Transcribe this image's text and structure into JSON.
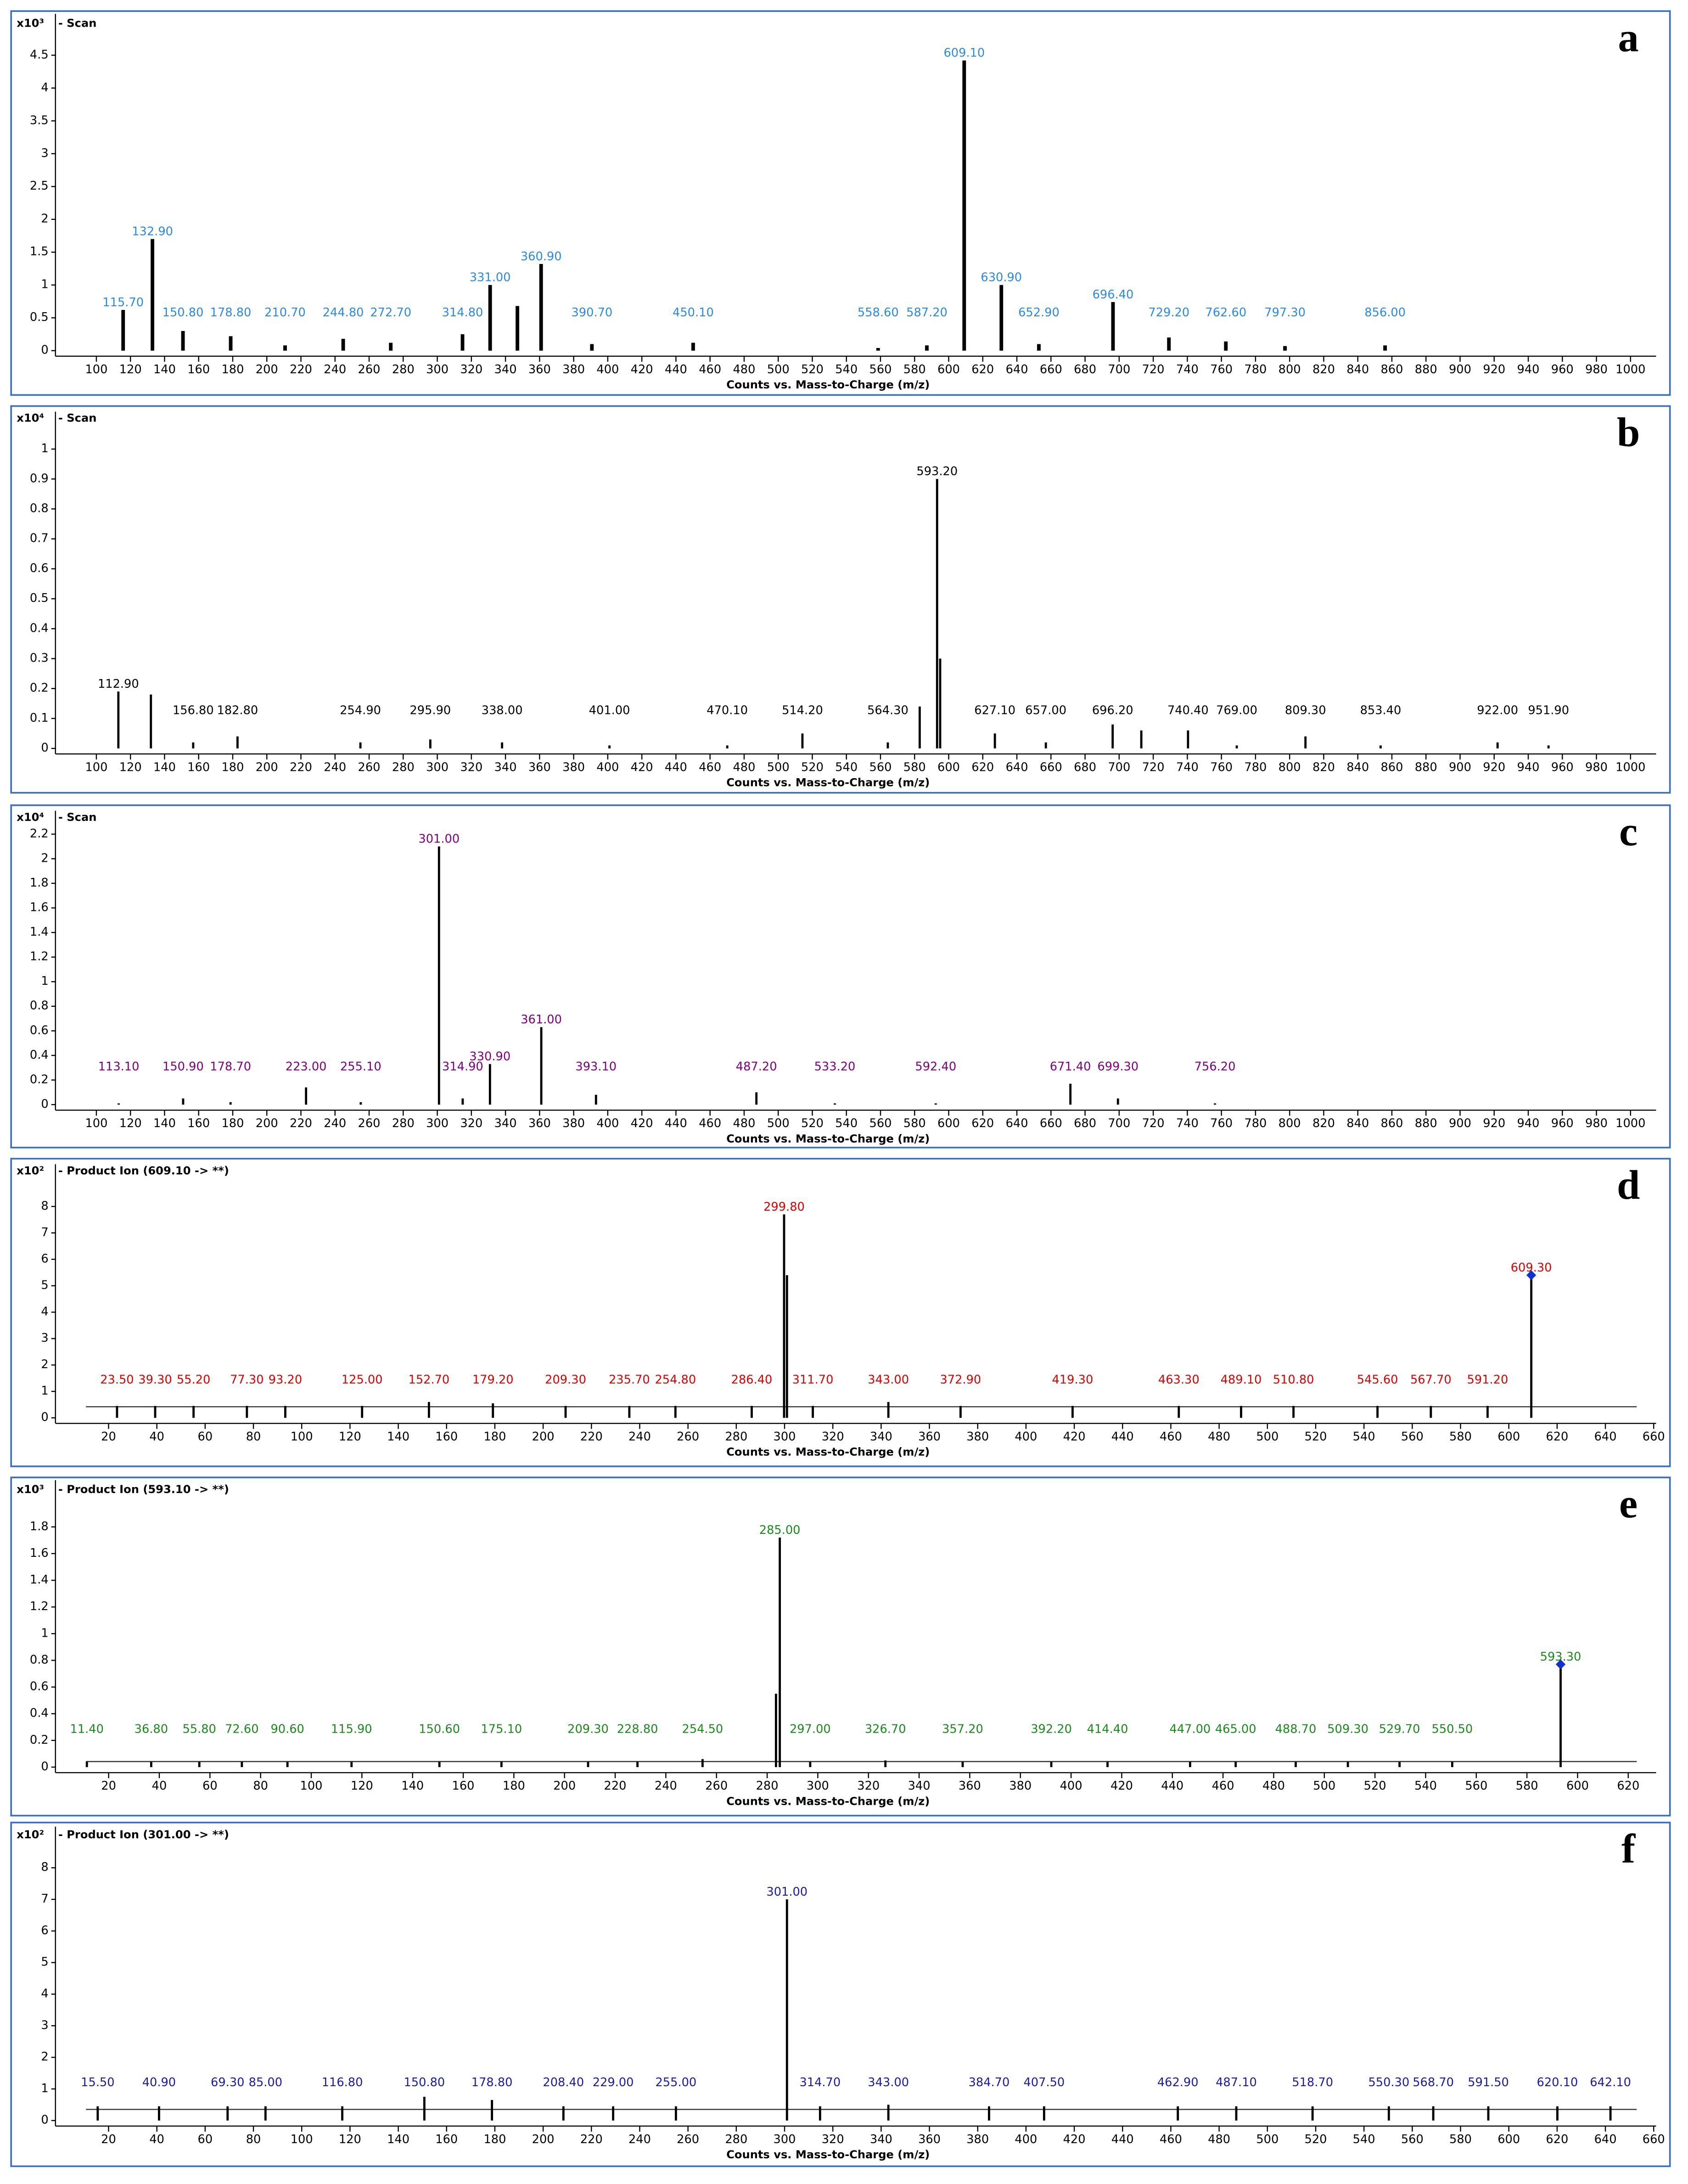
{
  "chart_data": [
    {
      "type": "bar",
      "letter": "a",
      "multiplier": "x10³",
      "title": "- Scan",
      "x_label": "Counts vs. Mass-to-Charge (m/z)",
      "color": "#000000",
      "label_color": "#2a8ae6",
      "x": [
        {
          "value": 115.7,
          "label": "115.70"
        },
        {
          "value": 132.9,
          "label": "132.90"
        },
        {
          "value": 150.8,
          "label": "150.80"
        },
        {
          "value": 178.8,
          "label": "178.80"
        },
        {
          "value": 210.7,
          "label": "210.70"
        },
        {
          "value": 244.8,
          "label": "244.80"
        },
        {
          "value": 272.7,
          "label": "272.70"
        },
        {
          "value": 314.8,
          "label": "314.80"
        },
        {
          "value": 331,
          "label": "331.00"
        },
        347,
        {
          "value": 360.9,
          "label": "360.90"
        },
        {
          "value": 390.7,
          "label": "390.70"
        },
        {
          "value": 450.1,
          "label": "450.10"
        },
        {
          "value": 558.6,
          "label": "558.60"
        },
        {
          "value": 587.2,
          "label": "587.20"
        },
        {
          "value": 609.1,
          "label": "609.10"
        },
        {
          "value": 630.9,
          "label": "630.90"
        },
        {
          "value": 652.9,
          "label": "652.90"
        },
        {
          "value": 696.4,
          "label": "696.40"
        },
        {
          "value": 729.2,
          "label": "729.20"
        },
        {
          "value": 762.6,
          "label": "762.60"
        },
        {
          "value": 797.3,
          "label": "797.30"
        },
        {
          "value": 856,
          "label": "856.00"
        }
      ],
      "values": [
        0.62,
        1.7,
        0.3,
        0.22,
        0.08,
        0.18,
        0.12,
        0.25,
        1.0,
        0.68,
        1.32,
        0.1,
        0.12,
        0.04,
        0.08,
        4.42,
        1.0,
        0.1,
        0.74,
        0.2,
        0.14,
        0.07,
        0.08
      ],
      "xlim": [
        76,
        1015
      ],
      "ylim": [
        0,
        5.13
      ],
      "xticks": [
        100,
        120,
        140,
        160,
        180,
        200,
        220,
        240,
        260,
        280,
        300,
        320,
        340,
        360,
        380,
        400,
        420,
        440,
        460,
        480,
        500,
        520,
        540,
        560,
        580,
        600,
        620,
        640,
        660,
        680,
        700,
        720,
        740,
        760,
        780,
        800,
        820,
        840,
        860,
        880,
        900,
        920,
        940,
        960,
        980,
        1000
      ],
      "yticks": [
        0,
        0.5,
        1,
        1.5,
        2,
        2.5,
        3,
        3.5,
        4,
        4.5
      ]
    },
    {
      "type": "bar",
      "letter": "b",
      "multiplier": "x10⁴",
      "title": "- Scan",
      "x_label": "Counts vs. Mass-to-Charge (m/z)",
      "color": "#000000",
      "label_color": "#000000",
      "x": [
        {
          "value": 112.9,
          "label": "112.90"
        },
        132,
        {
          "value": 156.8,
          "label": "156.80"
        },
        {
          "value": 182.8,
          "label": "182.80"
        },
        {
          "value": 254.9,
          "label": "254.90"
        },
        {
          "value": 295.9,
          "label": "295.90"
        },
        {
          "value": 338,
          "label": "338.00"
        },
        {
          "value": 401,
          "label": "401.00"
        },
        {
          "value": 470.1,
          "label": "470.10"
        },
        {
          "value": 514.2,
          "label": "514.20"
        },
        {
          "value": 564.3,
          "label": "564.30"
        },
        583,
        {
          "value": 593.2,
          "label": "593.20"
        },
        595,
        {
          "value": 627.1,
          "label": "627.10"
        },
        {
          "value": 657,
          "label": "657.00"
        },
        {
          "value": 696.2,
          "label": "696.20"
        },
        713,
        {
          "value": 740.4,
          "label": "740.40"
        },
        {
          "value": 769,
          "label": "769.00"
        },
        {
          "value": 809.3,
          "label": "809.30"
        },
        {
          "value": 853.4,
          "label": "853.40"
        },
        {
          "value": 922,
          "label": "922.00"
        },
        {
          "value": 951.9,
          "label": "951.90"
        }
      ],
      "values": [
        0.19,
        0.18,
        0.02,
        0.04,
        0.02,
        0.03,
        0.02,
        0.01,
        0.01,
        0.05,
        0.02,
        0.14,
        0.9,
        0.3,
        0.05,
        0.02,
        0.08,
        0.06,
        0.06,
        0.01,
        0.04,
        0.01,
        0.02,
        0.01
      ],
      "xlim": [
        76,
        1015
      ],
      "ylim": [
        0,
        1.125
      ],
      "xticks": [
        100,
        120,
        140,
        160,
        180,
        200,
        220,
        240,
        260,
        280,
        300,
        320,
        340,
        360,
        380,
        400,
        420,
        440,
        460,
        480,
        500,
        520,
        540,
        560,
        580,
        600,
        620,
        640,
        660,
        680,
        700,
        720,
        740,
        760,
        780,
        800,
        820,
        840,
        860,
        880,
        900,
        920,
        940,
        960,
        980,
        1000
      ],
      "yticks": [
        0,
        0.1,
        0.2,
        0.3,
        0.4,
        0.5,
        0.6,
        0.7,
        0.8,
        0.9,
        1
      ]
    },
    {
      "type": "bar",
      "letter": "c",
      "multiplier": "x10⁴",
      "title": "- Scan",
      "x_label": "Counts vs. Mass-to-Charge (m/z)",
      "color": "#000000",
      "label_color": "#800080",
      "x": [
        {
          "value": 113.1,
          "label": "113.10"
        },
        {
          "value": 150.9,
          "label": "150.90"
        },
        {
          "value": 178.7,
          "label": "178.70"
        },
        {
          "value": 223,
          "label": "223.00"
        },
        {
          "value": 255.1,
          "label": "255.10"
        },
        {
          "value": 301,
          "label": "301.00"
        },
        {
          "value": 314.9,
          "label": "314.90"
        },
        {
          "value": 330.9,
          "label": "330.90"
        },
        {
          "value": 361,
          "label": "361.00"
        },
        {
          "value": 393.1,
          "label": "393.10"
        },
        {
          "value": 487.2,
          "label": "487.20"
        },
        {
          "value": 533.2,
          "label": "533.20"
        },
        {
          "value": 592.4,
          "label": "592.40"
        },
        {
          "value": 671.4,
          "label": "671.40"
        },
        {
          "value": 699.3,
          "label": "699.30"
        },
        {
          "value": 756.2,
          "label": "756.20"
        }
      ],
      "values": [
        0.01,
        0.05,
        0.02,
        0.14,
        0.02,
        2.1,
        0.05,
        0.33,
        0.63,
        0.08,
        0.1,
        0.01,
        0.01,
        0.17,
        0.05,
        0.01
      ],
      "xlim": [
        76,
        1015
      ],
      "ylim": [
        0,
        2.39
      ],
      "xticks": [
        100,
        120,
        140,
        160,
        180,
        200,
        220,
        240,
        260,
        280,
        300,
        320,
        340,
        360,
        380,
        400,
        420,
        440,
        460,
        480,
        500,
        520,
        540,
        560,
        580,
        600,
        620,
        640,
        660,
        680,
        700,
        720,
        740,
        760,
        780,
        800,
        820,
        840,
        860,
        880,
        900,
        920,
        940,
        960,
        980,
        1000
      ],
      "yticks": [
        0,
        0.2,
        0.4,
        0.6,
        0.8,
        1,
        1.2,
        1.4,
        1.6,
        1.8,
        2,
        2.2
      ]
    },
    {
      "type": "bar",
      "letter": "d",
      "multiplier": "x10²",
      "title": "- Product Ion (609.10 -> **)",
      "x_label": "Counts vs. Mass-to-Charge (m/z)",
      "color": "#000000",
      "label_color": "#e00000",
      "x": [
        {
          "value": 23.5,
          "label": "23.50"
        },
        {
          "value": 39.3,
          "label": "39.30"
        },
        {
          "value": 55.2,
          "label": "55.20"
        },
        {
          "value": 77.3,
          "label": "77.30"
        },
        {
          "value": 93.2,
          "label": "93.20"
        },
        {
          "value": 125,
          "label": "125.00"
        },
        {
          "value": 152.7,
          "label": "152.70"
        },
        {
          "value": 179.2,
          "label": "179.20"
        },
        {
          "value": 209.3,
          "label": "209.30"
        },
        {
          "value": 235.7,
          "label": "235.70"
        },
        {
          "value": 254.8,
          "label": "254.80"
        },
        {
          "value": 286.4,
          "label": "286.40"
        },
        {
          "value": 299.8,
          "label": "299.80"
        },
        301,
        {
          "value": 311.7,
          "label": "311.70"
        },
        {
          "value": 343,
          "label": "343.00"
        },
        {
          "value": 372.9,
          "label": "372.90"
        },
        {
          "value": 419.3,
          "label": "419.30"
        },
        {
          "value": 463.3,
          "label": "463.30"
        },
        {
          "value": 489.1,
          "label": "489.10"
        },
        {
          "value": 510.8,
          "label": "510.80"
        },
        {
          "value": 545.6,
          "label": "545.60"
        },
        {
          "value": 567.7,
          "label": "567.70"
        },
        {
          "value": 591.2,
          "label": "591.20"
        },
        {
          "value": 609.3,
          "label": "609.30",
          "marker": "diamond"
        }
      ],
      "values": [
        0.45,
        0.45,
        0.45,
        0.45,
        0.45,
        0.45,
        0.6,
        0.55,
        0.45,
        0.45,
        0.45,
        0.45,
        7.7,
        5.4,
        0.45,
        0.6,
        0.45,
        0.45,
        0.45,
        0.45,
        0.45,
        0.45,
        0.45,
        0.45,
        5.4
      ],
      "xlim": [
        -2,
        661
      ],
      "ylim": [
        0,
        9.6
      ],
      "xticks": [
        20,
        40,
        60,
        80,
        100,
        120,
        140,
        160,
        180,
        200,
        220,
        240,
        260,
        280,
        300,
        320,
        340,
        360,
        380,
        400,
        420,
        440,
        460,
        480,
        500,
        520,
        540,
        560,
        580,
        600,
        620,
        640,
        660
      ],
      "yticks": [
        0,
        1,
        2,
        3,
        4,
        5,
        6,
        7,
        8
      ]
    },
    {
      "type": "bar",
      "letter": "e",
      "multiplier": "x10³",
      "title": "- Product Ion  (593.10 -> **)",
      "x_label": "Counts vs. Mass-to-Charge (m/z)",
      "color": "#000000",
      "label_color": "#1a8a1a",
      "x": [
        {
          "value": 11.4,
          "label": "11.40"
        },
        {
          "value": 36.8,
          "label": "36.80"
        },
        {
          "value": 55.8,
          "label": "55.80"
        },
        {
          "value": 72.6,
          "label": "72.60"
        },
        {
          "value": 90.6,
          "label": "90.60"
        },
        {
          "value": 115.9,
          "label": "115.90"
        },
        {
          "value": 150.6,
          "label": "150.60"
        },
        {
          "value": 175.1,
          "label": "175.10"
        },
        {
          "value": 209.3,
          "label": "209.30"
        },
        {
          "value": 228.8,
          "label": "228.80"
        },
        {
          "value": 254.5,
          "label": "254.50"
        },
        283.5,
        {
          "value": 285,
          "label": "285.00"
        },
        {
          "value": 297,
          "label": "297.00"
        },
        {
          "value": 326.7,
          "label": "326.70"
        },
        {
          "value": 357.2,
          "label": "357.20"
        },
        {
          "value": 392.2,
          "label": "392.20"
        },
        {
          "value": 414.4,
          "label": "414.40"
        },
        {
          "value": 447,
          "label": "447.00"
        },
        {
          "value": 465,
          "label": "465.00"
        },
        {
          "value": 488.7,
          "label": "488.70"
        },
        {
          "value": 509.3,
          "label": "509.30"
        },
        {
          "value": 529.7,
          "label": "529.70"
        },
        {
          "value": 550.5,
          "label": "550.50"
        },
        {
          "value": 593.3,
          "label": "593.30",
          "marker": "diamond"
        }
      ],
      "values": [
        0.04,
        0.04,
        0.04,
        0.04,
        0.04,
        0.04,
        0.04,
        0.04,
        0.04,
        0.04,
        0.06,
        0.55,
        1.72,
        0.04,
        0.05,
        0.04,
        0.04,
        0.04,
        0.04,
        0.04,
        0.04,
        0.04,
        0.04,
        0.04,
        0.77
      ],
      "xlim": [
        -1,
        631
      ],
      "ylim": [
        0,
        2.15
      ],
      "xticks": [
        20,
        40,
        60,
        80,
        100,
        120,
        140,
        160,
        180,
        200,
        220,
        240,
        260,
        280,
        300,
        320,
        340,
        360,
        380,
        400,
        420,
        440,
        460,
        480,
        500,
        520,
        540,
        560,
        580,
        600,
        620
      ],
      "yticks": [
        0,
        0.2,
        0.4,
        0.6,
        0.8,
        1,
        1.2,
        1.4,
        1.6,
        1.8
      ]
    },
    {
      "type": "bar",
      "letter": "f",
      "multiplier": "x10²",
      "title": "- Product Ion (301.00 -> **)",
      "x_label": "Counts vs. Mass-to-Charge (m/z)",
      "color": "#000000",
      "label_color": "#1a1ab0",
      "x": [
        {
          "value": 15.5,
          "label": "15.50"
        },
        {
          "value": 40.9,
          "label": "40.90"
        },
        {
          "value": 69.3,
          "label": "69.30"
        },
        {
          "value": 85,
          "label": "85.00"
        },
        {
          "value": 116.8,
          "label": "116.80"
        },
        {
          "value": 150.8,
          "label": "150.80"
        },
        {
          "value": 178.8,
          "label": "178.80"
        },
        {
          "value": 208.4,
          "label": "208.40"
        },
        {
          "value": 229,
          "label": "229.00"
        },
        {
          "value": 255,
          "label": "255.00"
        },
        {
          "value": 301,
          "label": "301.00"
        },
        {
          "value": 314.7,
          "label": "314.70"
        },
        {
          "value": 343,
          "label": "343.00"
        },
        {
          "value": 384.7,
          "label": "384.70"
        },
        {
          "value": 407.5,
          "label": "407.50"
        },
        {
          "value": 462.9,
          "label": "462.90"
        },
        {
          "value": 487.1,
          "label": "487.10"
        },
        {
          "value": 518.7,
          "label": "518.70"
        },
        {
          "value": 550.3,
          "label": "550.30"
        },
        {
          "value": 568.7,
          "label": "568.70"
        },
        {
          "value": 591.5,
          "label": "591.50"
        },
        {
          "value": 620.1,
          "label": "620.10"
        },
        {
          "value": 642.1,
          "label": "642.10"
        }
      ],
      "values": [
        0.45,
        0.45,
        0.45,
        0.45,
        0.45,
        0.75,
        0.65,
        0.45,
        0.45,
        0.45,
        7.0,
        0.45,
        0.5,
        0.45,
        0.45,
        0.45,
        0.45,
        0.45,
        0.45,
        0.45,
        0.45,
        0.45,
        0.45
      ],
      "xlim": [
        -2,
        661
      ],
      "ylim": [
        0,
        9.3
      ],
      "xticks": [
        20,
        40,
        60,
        80,
        100,
        120,
        140,
        160,
        180,
        200,
        220,
        240,
        260,
        280,
        300,
        320,
        340,
        360,
        380,
        400,
        420,
        440,
        460,
        480,
        500,
        520,
        540,
        560,
        580,
        600,
        620,
        640,
        660
      ],
      "yticks": [
        0,
        1,
        2,
        3,
        4,
        5,
        6,
        7,
        8
      ]
    }
  ]
}
